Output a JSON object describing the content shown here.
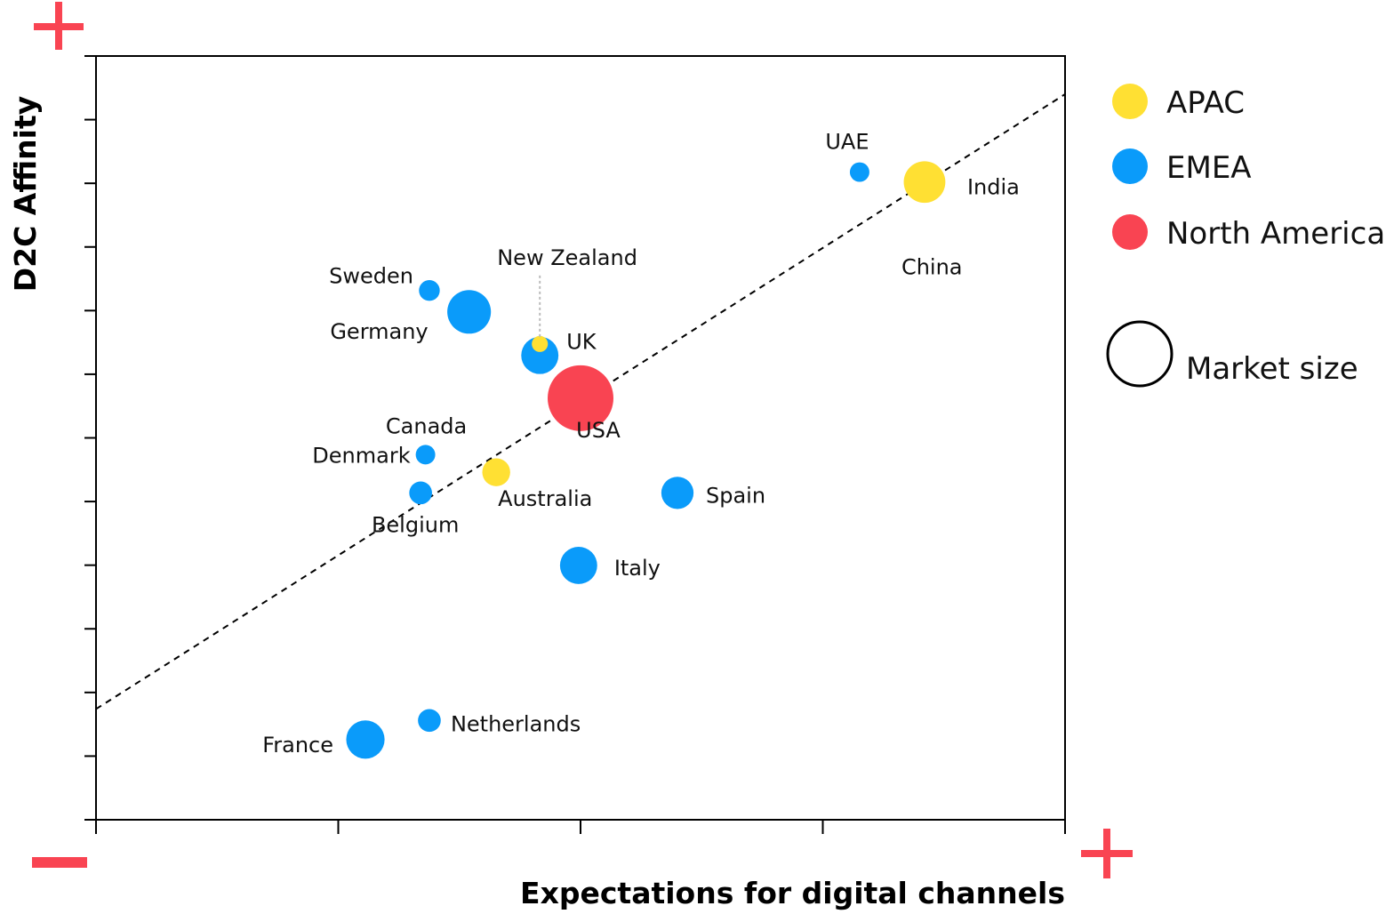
{
  "chart_data": {
    "type": "scatter",
    "title": "",
    "xlabel": "Expectations for digital channels",
    "ylabel": "D2C Affinity",
    "axis_markers": {
      "y_high": "+",
      "x_low": "−",
      "x_high": "+"
    },
    "xlim": [
      0,
      100
    ],
    "ylim": [
      0,
      100
    ],
    "grid": false,
    "x_ticks": 4,
    "y_ticks": 12,
    "trendline": {
      "style": "dashed",
      "x": [
        0,
        100
      ],
      "y": [
        14.5,
        95
      ]
    },
    "legend_placement": "right",
    "series": [
      {
        "name": "APAC",
        "color": "#FFE033",
        "points": [
          {
            "label": "India",
            "x": 85.5,
            "y": 83.5,
            "size": 10,
            "show_label": true
          },
          {
            "label": "China",
            "x": 85.5,
            "y": 83.5,
            "size": 10,
            "show_label": true
          },
          {
            "label": "Australia",
            "x": 41.3,
            "y": 45.5,
            "size": 4.5,
            "show_label": true
          },
          {
            "label": "New Zealand",
            "x": 45.8,
            "y": 62.3,
            "size": 1.5,
            "show_label": true
          }
        ]
      },
      {
        "name": "EMEA",
        "color": "#0A9BFA",
        "points": [
          {
            "label": "UAE",
            "x": 78.8,
            "y": 84.8,
            "size": 2.2,
            "show_label": true
          },
          {
            "label": "Sweden",
            "x": 34.4,
            "y": 69.3,
            "size": 2.5,
            "show_label": true
          },
          {
            "label": "Germany",
            "x": 38.5,
            "y": 66.5,
            "size": 11,
            "show_label": true
          },
          {
            "label": "UK",
            "x": 45.8,
            "y": 60.8,
            "size": 8,
            "show_label": true
          },
          {
            "label": "Denmark",
            "x": 34.0,
            "y": 47.8,
            "size": 2.2,
            "show_label": true
          },
          {
            "label": "Belgium",
            "x": 33.5,
            "y": 42.8,
            "size": 3,
            "show_label": true
          },
          {
            "label": "Spain",
            "x": 60.0,
            "y": 42.8,
            "size": 6,
            "show_label": true
          },
          {
            "label": "Italy",
            "x": 49.8,
            "y": 33.3,
            "size": 8,
            "show_label": true
          },
          {
            "label": "Netherlands",
            "x": 34.4,
            "y": 13.0,
            "size": 3,
            "show_label": true
          },
          {
            "label": "France",
            "x": 27.8,
            "y": 10.5,
            "size": 8.5,
            "show_label": true
          }
        ]
      },
      {
        "name": "North America",
        "color": "#F94452",
        "points": [
          {
            "label": "USA",
            "x": 50.0,
            "y": 55.2,
            "size": 25,
            "show_label": true
          },
          {
            "label": "Canada",
            "x": 34.0,
            "y": 47.8,
            "size": 2,
            "show_label": true
          }
        ]
      }
    ],
    "size_legend_label": "Market size"
  }
}
